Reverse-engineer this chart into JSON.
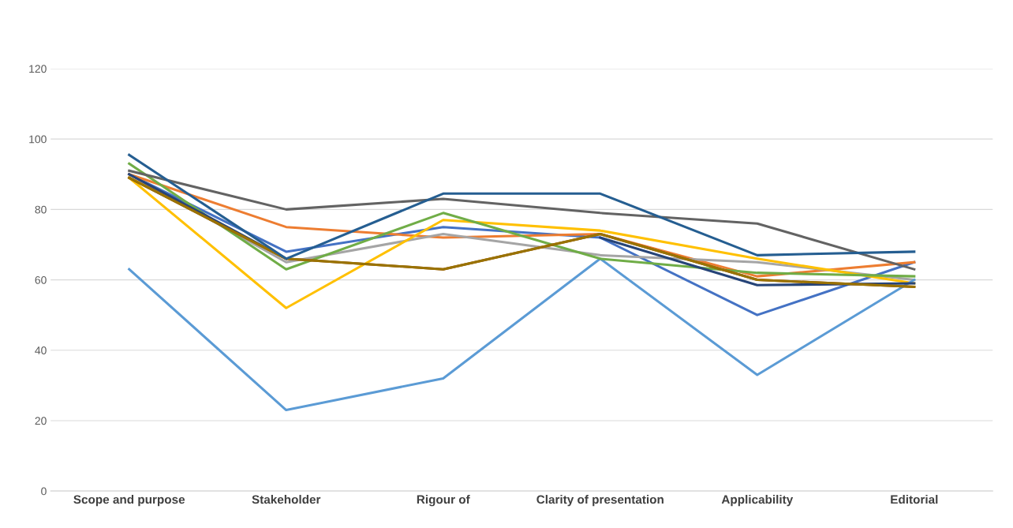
{
  "chart_data": {
    "type": "line",
    "categories": [
      "Scope and purpose",
      "Stakeholder",
      "Rigour of",
      "Clarity of presentation",
      "Applicability",
      "Editorial"
    ],
    "series": [
      {
        "color": "#4472c4",
        "values": [
          90,
          68,
          75,
          72,
          50,
          65
        ]
      },
      {
        "color": "#ed7d31",
        "values": [
          90,
          75,
          72,
          73,
          61,
          65
        ]
      },
      {
        "color": "#a5a5a5",
        "values": [
          90,
          65,
          73,
          67,
          65,
          60
        ]
      },
      {
        "color": "#ffc000",
        "values": [
          89,
          52,
          77,
          74,
          66,
          59
        ]
      },
      {
        "color": "#5b9bd5",
        "values": [
          63,
          23,
          32,
          66,
          33,
          60
        ]
      },
      {
        "color": "#70ad47",
        "values": [
          93,
          63,
          79,
          66,
          62,
          61
        ]
      },
      {
        "color": "#264478",
        "values": [
          90,
          66,
          null,
          72,
          58.5,
          59
        ]
      },
      {
        "color": "#9e480e",
        "values": [
          89,
          66,
          63,
          73,
          60,
          58
        ]
      },
      {
        "color": "#636363",
        "values": [
          91,
          80,
          83,
          79,
          76,
          63
        ]
      },
      {
        "color": "#997300",
        "values": [
          89,
          66,
          63,
          73,
          60,
          58
        ]
      },
      {
        "color": "#255e91",
        "values": [
          95.5,
          66,
          84.5,
          84.5,
          67,
          68
        ]
      }
    ],
    "ylim": [
      0,
      120
    ],
    "yticks": [
      0,
      20,
      40,
      60,
      80,
      100,
      120
    ],
    "grid": "y",
    "marker": "none",
    "line_style": "solid"
  }
}
